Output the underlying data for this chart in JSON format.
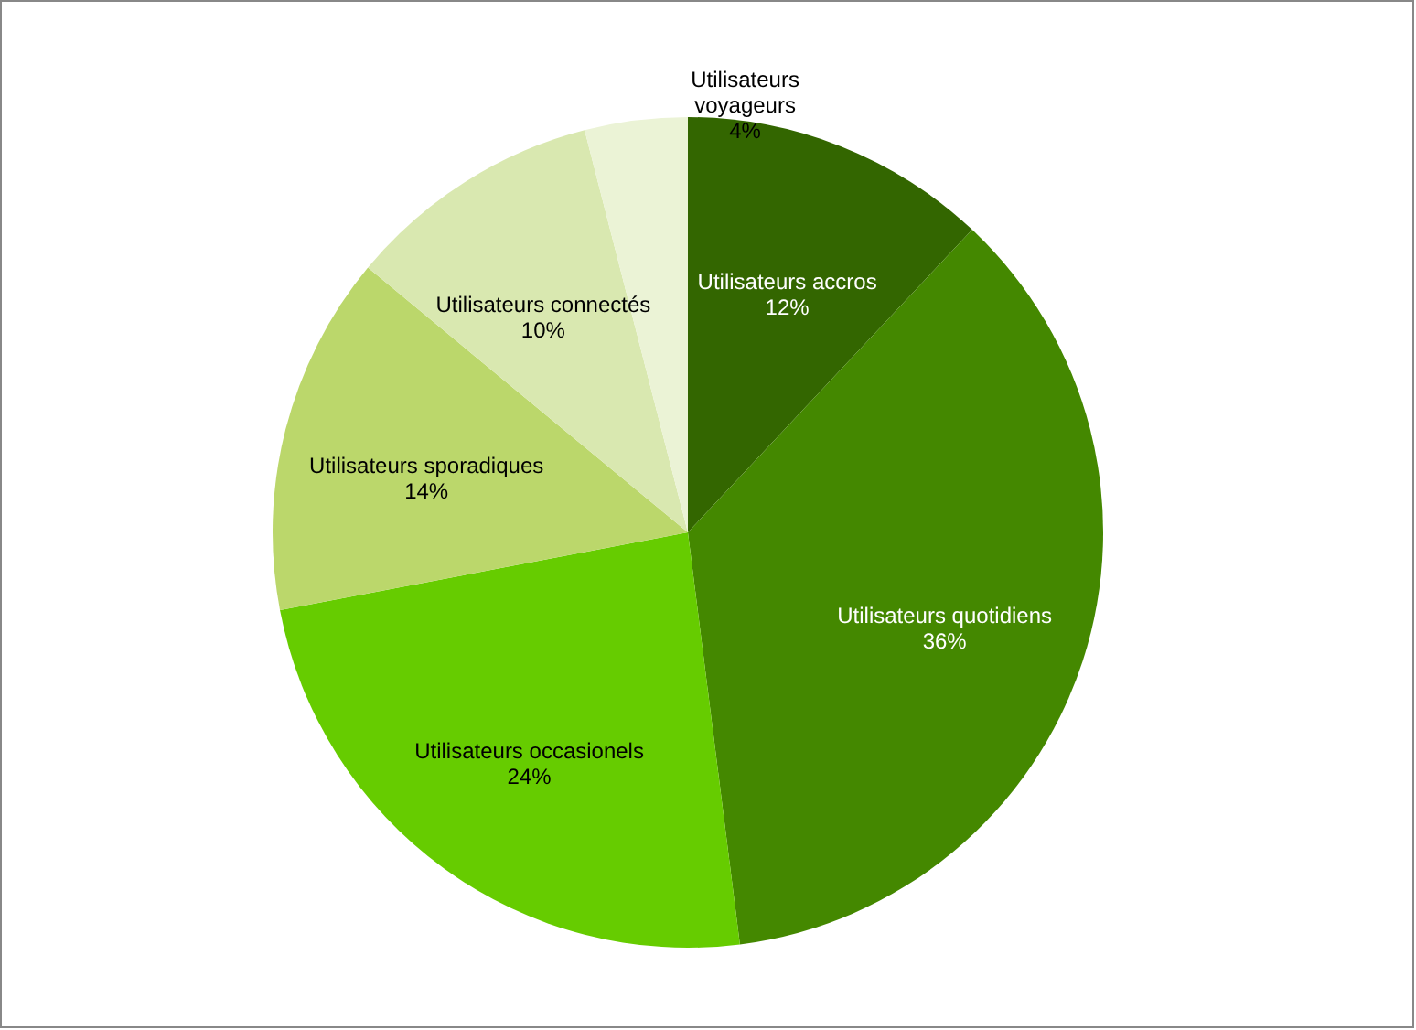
{
  "chart_data": {
    "type": "pie",
    "categories": [
      "Utilisateurs accros",
      "Utilisateurs quotidiens",
      "Utilisateurs occasionels",
      "Utilisateurs sporadiques",
      "Utilisateurs connectés",
      "Utilisateurs voyageurs"
    ],
    "values": [
      12,
      36,
      24,
      14,
      10,
      4
    ],
    "value_labels": [
      "12%",
      "36%",
      "24%",
      "14%",
      "10%",
      "4%"
    ],
    "colors": [
      "#336600",
      "#448800",
      "#66cc00",
      "#bbd76b",
      "#d9e8b0",
      "#ebf3d6"
    ]
  }
}
